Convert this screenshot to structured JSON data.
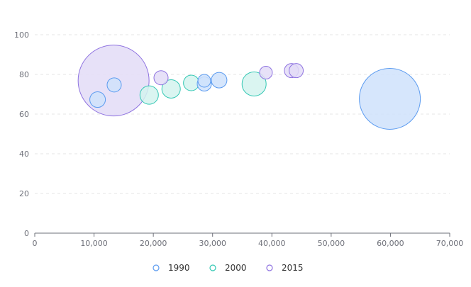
{
  "chart_data": {
    "type": "scatter",
    "title": "",
    "xlabel": "",
    "ylabel": "",
    "xlim": [
      0,
      70000
    ],
    "ylim": [
      0,
      100
    ],
    "xticks": [
      "0",
      "10,000",
      "20,000",
      "30,000",
      "40,000",
      "50,000",
      "60,000",
      "70,000"
    ],
    "yticks": [
      "0",
      "20",
      "40",
      "60",
      "80",
      "100"
    ],
    "grid": "horizontal dashed",
    "legend_position": "bottom-center",
    "bubble": true,
    "series": [
      {
        "name": "1990",
        "color": "#5b9bf0",
        "fill": "#cfe2fb",
        "points": [
          {
            "x": 13400,
            "y": 74.7,
            "size": 10
          },
          {
            "x": 10600,
            "y": 67.3,
            "size": 11
          },
          {
            "x": 28600,
            "y": 76.8,
            "size": 9
          },
          {
            "x": 28600,
            "y": 75.2,
            "size": 10
          },
          {
            "x": 31100,
            "y": 77.1,
            "size": 11
          },
          {
            "x": 59900,
            "y": 67.7,
            "size": 43
          }
        ]
      },
      {
        "name": "2000",
        "color": "#34c8b4",
        "fill": "#d3f3ee",
        "points": [
          {
            "x": 19300,
            "y": 69.6,
            "size": 13
          },
          {
            "x": 23000,
            "y": 72.7,
            "size": 13
          },
          {
            "x": 26400,
            "y": 75.7,
            "size": 11
          },
          {
            "x": 37000,
            "y": 75.2,
            "size": 17
          }
        ]
      },
      {
        "name": "2015",
        "color": "#8e72e0",
        "fill": "#e3dcf7",
        "points": [
          {
            "x": 13300,
            "y": 76.9,
            "size": 50
          },
          {
            "x": 21300,
            "y": 78.3,
            "size": 10
          },
          {
            "x": 39000,
            "y": 80.9,
            "size": 9
          },
          {
            "x": 43300,
            "y": 81.9,
            "size": 10
          },
          {
            "x": 44100,
            "y": 81.9,
            "size": 10
          }
        ]
      }
    ]
  }
}
